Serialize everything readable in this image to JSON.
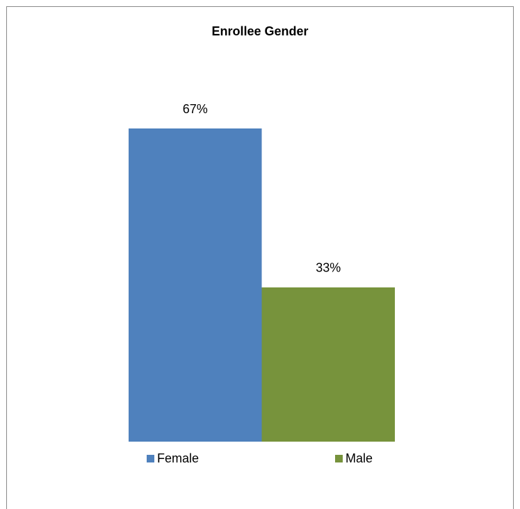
{
  "chart_data": {
    "type": "bar",
    "title": "Enrollee Gender",
    "series": [
      {
        "name": "Female",
        "color": "#4f81bd",
        "values": [
          67
        ],
        "value_labels": [
          "67%"
        ]
      },
      {
        "name": "Male",
        "color": "#77933c",
        "values": [
          33
        ],
        "value_labels": [
          "33%"
        ]
      }
    ]
  }
}
